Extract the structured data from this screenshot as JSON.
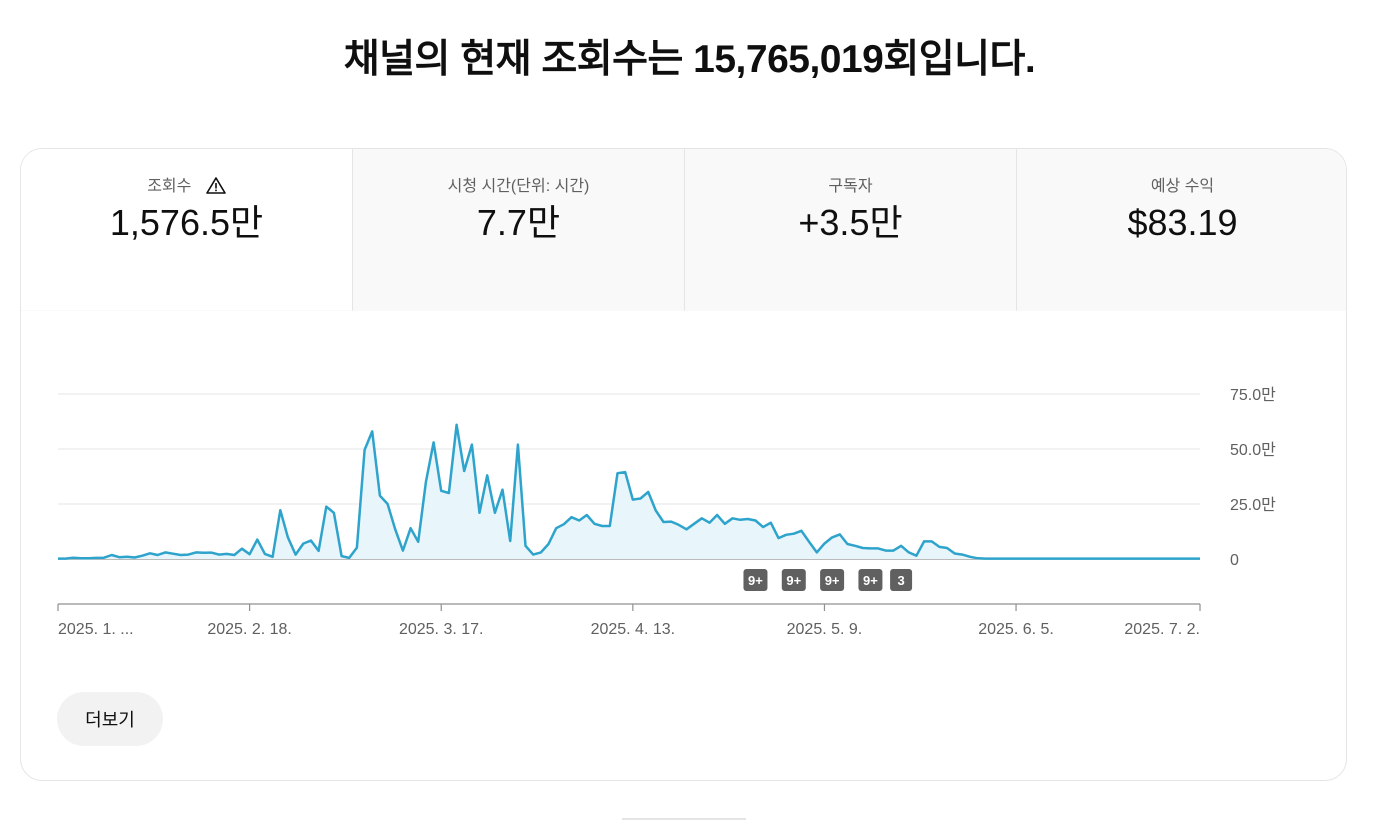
{
  "headline": "채널의 현재 조회수는 15,765,019회입니다.",
  "tabs": [
    {
      "label": "조회수",
      "value": "1,576.5만",
      "warning_icon": "warning-triangle-icon",
      "active": true
    },
    {
      "label": "시청 시간(단위: 시간)",
      "value": "7.7만",
      "active": false
    },
    {
      "label": "구독자",
      "value": "+3.5만",
      "active": false
    },
    {
      "label": "예상 수익",
      "value": "$83.19",
      "active": false
    }
  ],
  "more_button": "더보기",
  "colors": {
    "line": "#2ea3cb",
    "fill": "#e8f5fb",
    "grid": "#e5e5e5",
    "badge": "#606060"
  },
  "chart_data": {
    "type": "area",
    "ylim": [
      0,
      750000
    ],
    "ytick_values": [
      0,
      250000,
      500000,
      750000
    ],
    "ytick_labels": [
      "0",
      "25.0만",
      "50.0만",
      "75.0만"
    ],
    "xtick_labels": [
      "2025. 1. ...",
      "2025. 2. 18.",
      "2025. 3. 17.",
      "2025. 4. 13.",
      "2025. 5. 9.",
      "2025. 6. 5.",
      "2025. 7. 2."
    ],
    "xtick_indices": [
      0,
      25,
      50,
      75,
      100,
      125,
      149
    ],
    "series": [
      {
        "values": [
          2000,
          2000,
          6000,
          3000,
          3000,
          5000,
          6000,
          18000,
          8000,
          10000,
          7000,
          15000,
          26000,
          18000,
          30000,
          24000,
          18000,
          20000,
          30000,
          28000,
          29000,
          20000,
          23000,
          18000,
          47000,
          22000,
          88000,
          23000,
          10000,
          222000,
          98000,
          20000,
          70000,
          84000,
          37000,
          238000,
          210000,
          13000,
          5000,
          52000,
          496000,
          580000,
          288000,
          250000,
          135000,
          38000,
          140000,
          78000,
          350000,
          530000,
          310000,
          300000,
          610000,
          400000,
          520000,
          210000,
          380000,
          210000,
          315000,
          82000,
          520000,
          60000,
          20000,
          30000,
          68000,
          140000,
          158000,
          190000,
          175000,
          200000,
          160000,
          150000,
          150000,
          390000,
          395000,
          270000,
          275000,
          305000,
          220000,
          168000,
          170000,
          155000,
          135000,
          160000,
          185000,
          165000,
          200000,
          160000,
          185000,
          178000,
          182000,
          175000,
          145000,
          165000,
          95000,
          110000,
          115000,
          128000,
          78000,
          30000,
          70000,
          98000,
          112000,
          68000,
          60000,
          50000,
          48000,
          48000,
          38000,
          38000,
          60000,
          30000,
          15000,
          80000,
          80000,
          55000,
          50000,
          25000,
          20000,
          10000,
          3000,
          2000,
          2000,
          2000,
          2000,
          2000,
          2000,
          2000,
          2000,
          2000,
          2000,
          2000,
          2000,
          2000,
          2000,
          2000,
          2000,
          2000,
          2000,
          2000,
          2000,
          2000,
          2000,
          2000,
          2000,
          2000,
          2000,
          2000,
          2000,
          2000
        ]
      }
    ],
    "badges": [
      {
        "label": "9+",
        "index": 91
      },
      {
        "label": "9+",
        "index": 96
      },
      {
        "label": "9+",
        "index": 101
      },
      {
        "label": "9+",
        "index": 106
      },
      {
        "label": "3",
        "index": 110
      }
    ]
  }
}
